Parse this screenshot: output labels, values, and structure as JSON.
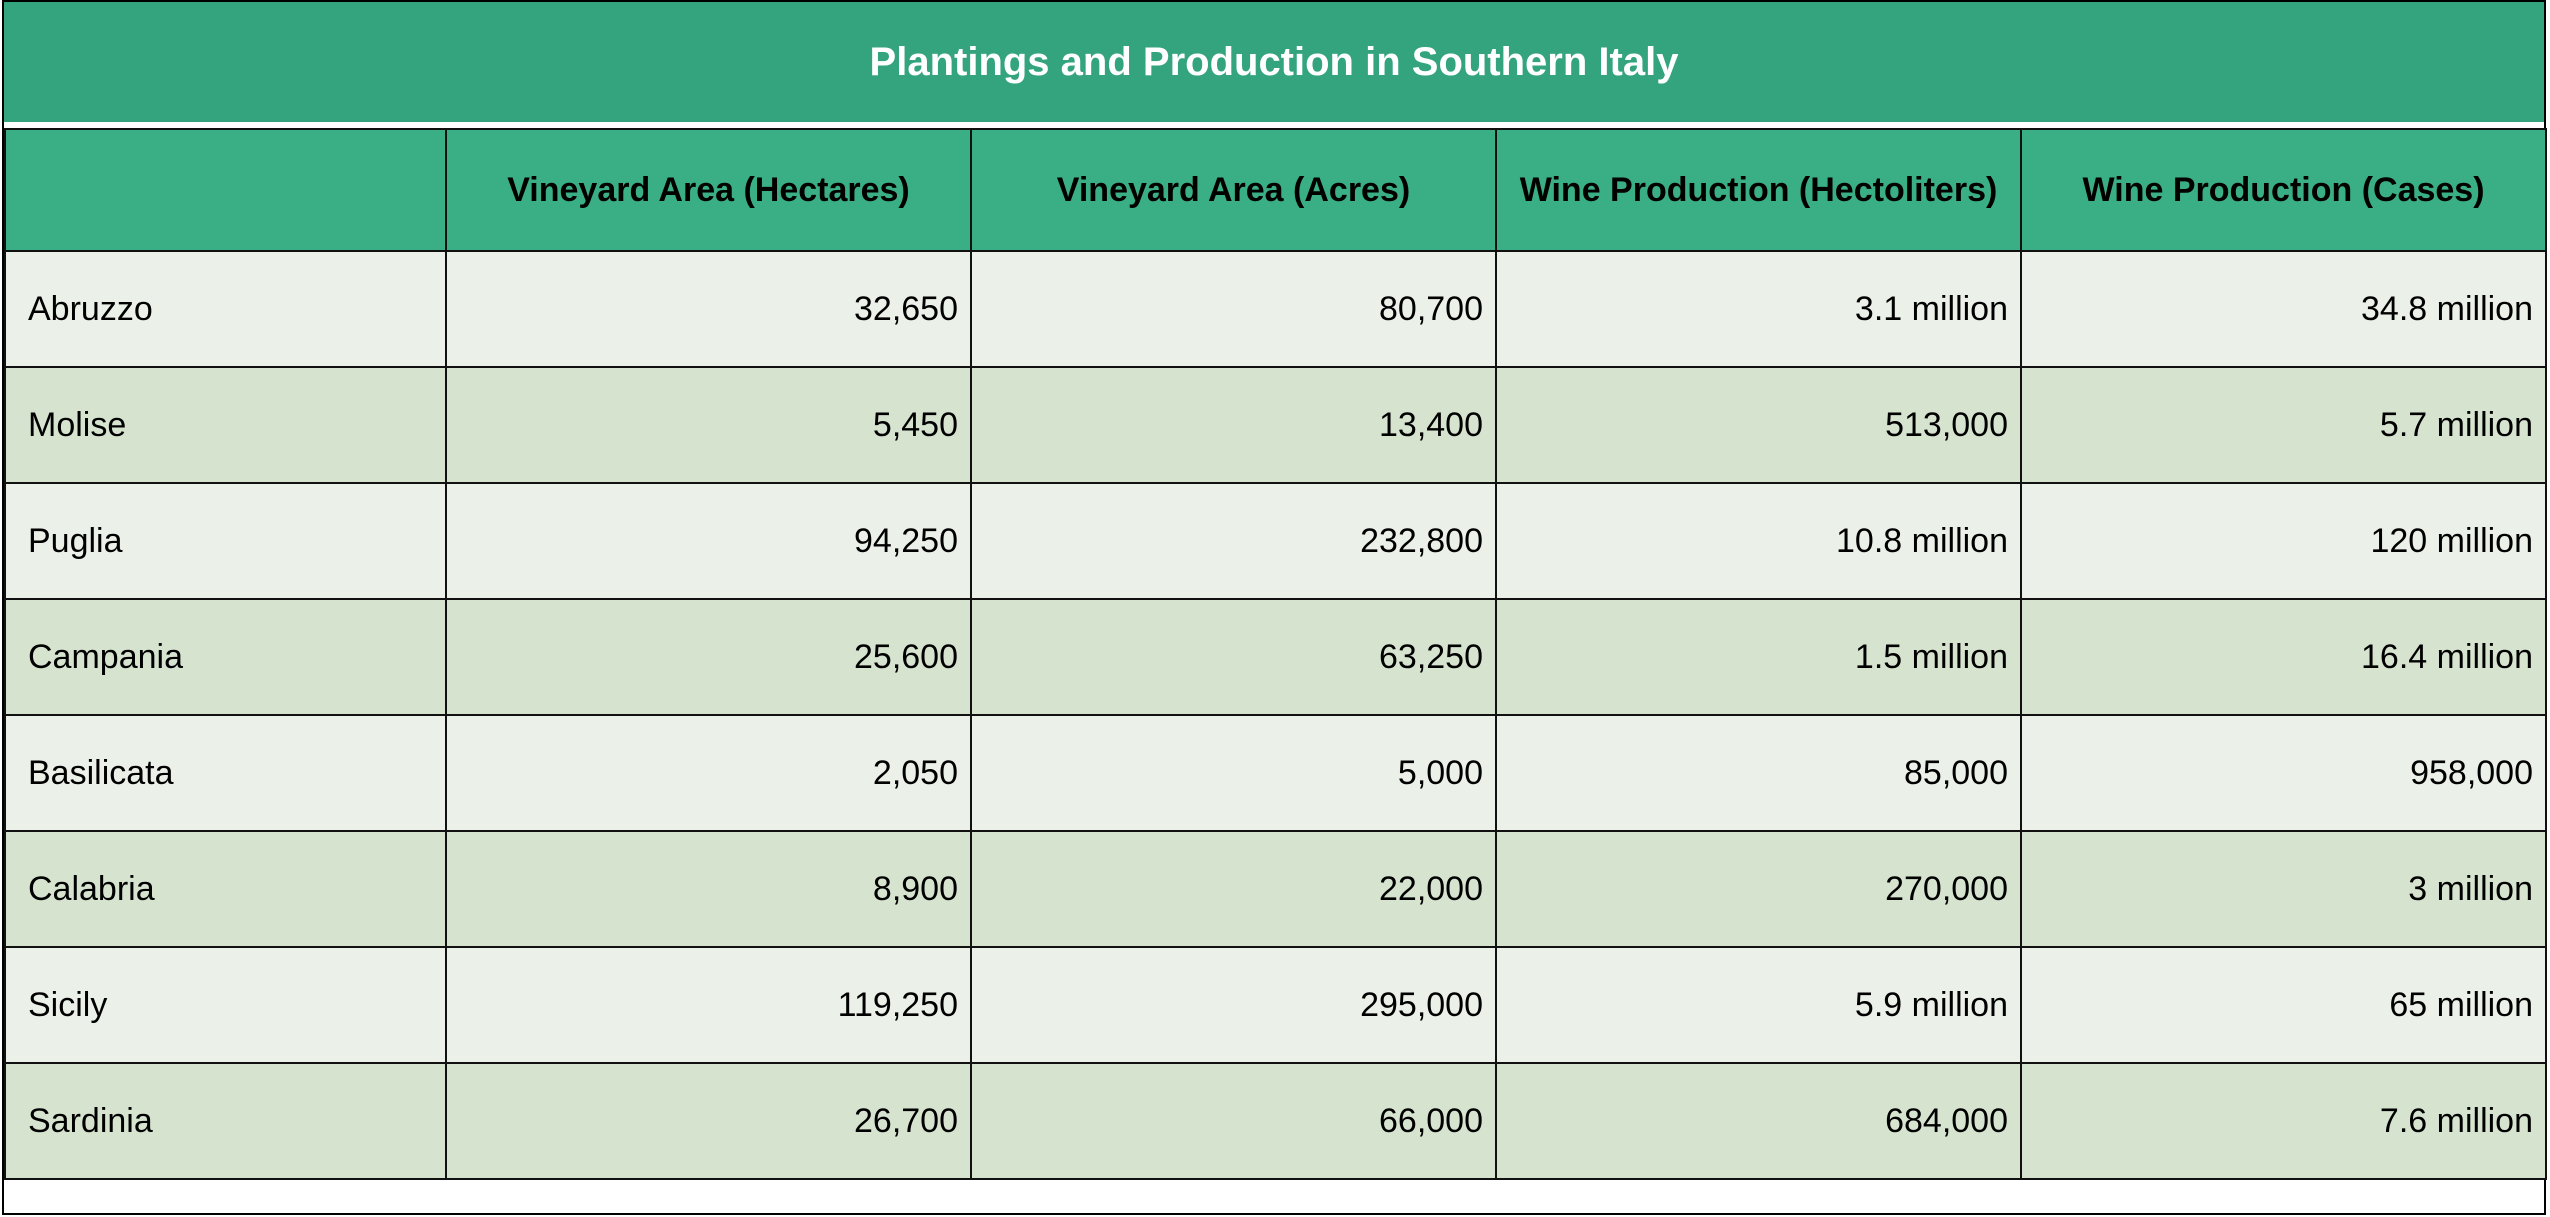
{
  "title": "Plantings and Production in Southern Italy",
  "colors": {
    "title_bg": "#34a47e",
    "header_bg": "#3aae85",
    "row_light": "#ebf1e8",
    "row_dark": "#d6e4cf"
  },
  "table": {
    "headers": [
      "",
      "Vineyard Area (Hectares)",
      "Vineyard Area (Acres)",
      "Wine Production (Hectoliters)",
      "Wine Production (Cases)"
    ],
    "rows": [
      {
        "region": "Abruzzo",
        "hectares": "32,650",
        "acres": "80,700",
        "hectoliters": "3.1 million",
        "cases": "34.8 million"
      },
      {
        "region": "Molise",
        "hectares": "5,450",
        "acres": "13,400",
        "hectoliters": "513,000",
        "cases": "5.7 million"
      },
      {
        "region": "Puglia",
        "hectares": "94,250",
        "acres": "232,800",
        "hectoliters": "10.8 million",
        "cases": "120 million"
      },
      {
        "region": "Campania",
        "hectares": "25,600",
        "acres": "63,250",
        "hectoliters": "1.5 million",
        "cases": "16.4 million"
      },
      {
        "region": "Basilicata",
        "hectares": "2,050",
        "acres": "5,000",
        "hectoliters": "85,000",
        "cases": "958,000"
      },
      {
        "region": "Calabria",
        "hectares": "8,900",
        "acres": "22,000",
        "hectoliters": "270,000",
        "cases": "3 million"
      },
      {
        "region": "Sicily",
        "hectares": "119,250",
        "acres": "295,000",
        "hectoliters": "5.9 million",
        "cases": "65 million"
      },
      {
        "region": "Sardinia",
        "hectares": "26,700",
        "acres": "66,000",
        "hectoliters": "684,000",
        "cases": "7.6 million"
      }
    ]
  }
}
